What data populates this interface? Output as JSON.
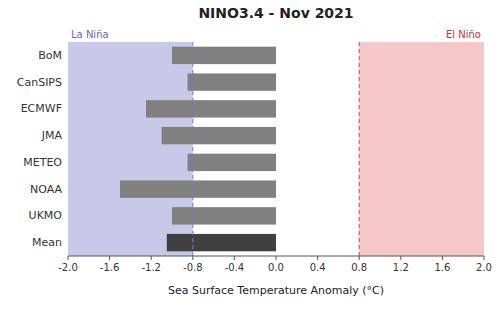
{
  "chart_data": {
    "type": "bar",
    "orientation": "horizontal",
    "title": "NINO3.4 - Nov 2021",
    "x_label": "Sea Surface Temperature Anomaly (°C)",
    "categories": [
      "BoM",
      "CanSIPS",
      "ECMWF",
      "JMA",
      "METEO",
      "NOAA",
      "UKMO",
      "Mean"
    ],
    "values": [
      -1.0,
      -0.85,
      -1.25,
      -1.1,
      -0.85,
      -1.5,
      -1.0,
      -1.05
    ],
    "colors": [
      "#808080",
      "#808080",
      "#808080",
      "#808080",
      "#808080",
      "#808080",
      "#808080",
      "#404040"
    ],
    "xlim": [
      -2.0,
      2.0
    ],
    "xticks": [
      {
        "value": -2.0,
        "label": "-2.0"
      },
      -1.6,
      -1.2,
      -0.8,
      -0.4,
      {
        "value": 0.0,
        "label": "0.0"
      },
      0.4,
      0.8,
      1.2,
      1.6,
      {
        "value": 2.0,
        "label": "2.0"
      }
    ],
    "grid": false,
    "annotations": [
      {
        "text": "La Niña",
        "x": -0.8,
        "side": "left",
        "color": "#6666bb",
        "fill": "#c8c8e8",
        "line_color": "#7777cc"
      },
      {
        "text": "El Niño",
        "x": 0.8,
        "side": "right",
        "color": "#bb3333",
        "fill": "#f5c8c8",
        "line_color": "#cc4444"
      }
    ]
  }
}
